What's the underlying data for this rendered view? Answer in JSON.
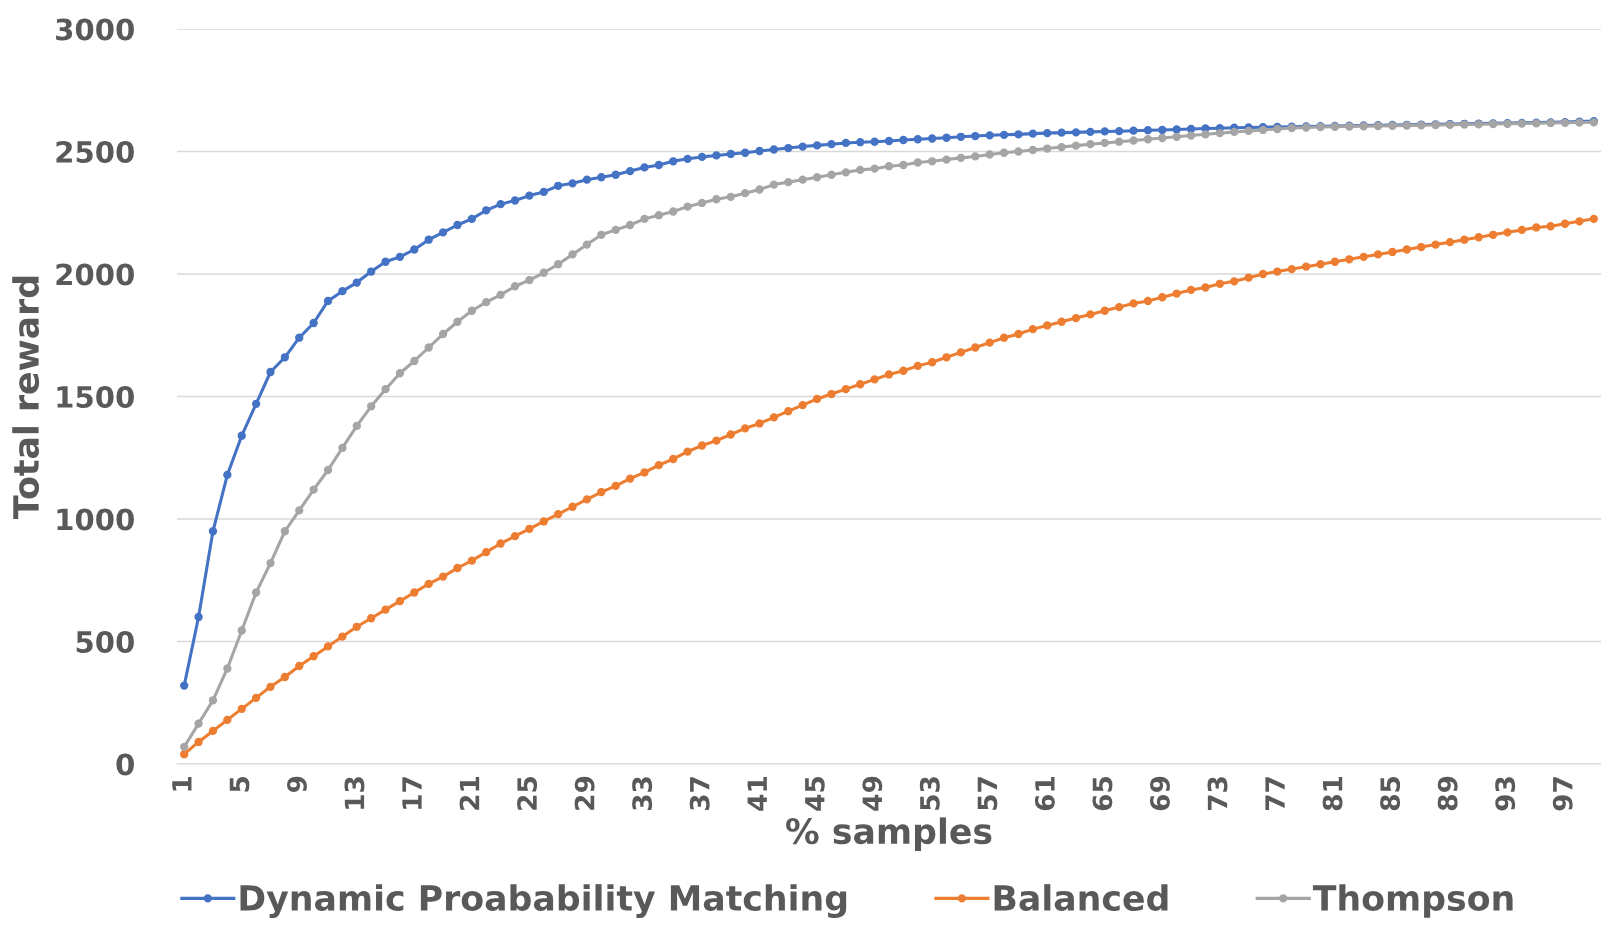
{
  "chart_data": {
    "type": "line",
    "xlabel": "% samples",
    "ylabel": "Total reward",
    "categories": [
      "1",
      null,
      null,
      null,
      "5",
      null,
      null,
      null,
      "9",
      null,
      null,
      null,
      "13",
      null,
      null,
      null,
      "17",
      null,
      null,
      null,
      "21",
      null,
      null,
      null,
      "25",
      null,
      null,
      null,
      "29",
      null,
      null,
      null,
      "33",
      null,
      null,
      null,
      "37",
      null,
      null,
      null,
      "41",
      null,
      null,
      null,
      "45",
      null,
      null,
      null,
      "49",
      null,
      null,
      null,
      "53",
      null,
      null,
      null,
      "57",
      null,
      null,
      null,
      "61",
      null,
      null,
      null,
      "65",
      null,
      null,
      null,
      "69",
      null,
      null,
      null,
      "73",
      null,
      null,
      null,
      "77",
      null,
      null,
      null,
      "81",
      null,
      null,
      null,
      "85",
      null,
      null,
      null,
      "89",
      null,
      null,
      null,
      "93",
      null,
      null,
      null,
      "97",
      null,
      null
    ],
    "series": [
      {
        "name": "Dynamic Proabability Matching",
        "color": "#4472c4",
        "values": [
          320,
          600,
          950,
          1180,
          1340,
          1470,
          1600,
          1660,
          1740,
          1800,
          1890,
          1930,
          1965,
          2010,
          2050,
          2070,
          2100,
          2140,
          2170,
          2200,
          2225,
          2260,
          2285,
          2300,
          2320,
          2335,
          2360,
          2370,
          2385,
          2395,
          2405,
          2420,
          2435,
          2445,
          2460,
          2470,
          2478,
          2484,
          2490,
          2495,
          2502,
          2508,
          2514,
          2520,
          2525,
          2530,
          2535,
          2538,
          2540,
          2543,
          2547,
          2550,
          2553,
          2556,
          2560,
          2563,
          2566,
          2568,
          2570,
          2573,
          2575,
          2577,
          2578,
          2580,
          2582,
          2583,
          2585,
          2587,
          2588,
          2590,
          2592,
          2594,
          2595,
          2597,
          2598,
          2599,
          2600,
          2601,
          2602,
          2603,
          2604,
          2605,
          2606,
          2607,
          2608,
          2609,
          2610,
          2611,
          2612,
          2613,
          2614,
          2615,
          2616,
          2617,
          2618,
          2619,
          2620,
          2622,
          2624
        ]
      },
      {
        "name": "Balanced",
        "color": "#ed7d31",
        "values": [
          40,
          90,
          135,
          180,
          225,
          270,
          315,
          355,
          400,
          440,
          480,
          520,
          560,
          595,
          630,
          665,
          700,
          735,
          765,
          800,
          830,
          865,
          900,
          930,
          960,
          990,
          1020,
          1050,
          1080,
          1110,
          1135,
          1165,
          1190,
          1220,
          1245,
          1275,
          1300,
          1320,
          1345,
          1370,
          1390,
          1415,
          1440,
          1465,
          1490,
          1510,
          1530,
          1550,
          1570,
          1590,
          1605,
          1625,
          1640,
          1660,
          1680,
          1700,
          1720,
          1740,
          1755,
          1775,
          1790,
          1805,
          1820,
          1835,
          1850,
          1865,
          1880,
          1890,
          1905,
          1920,
          1935,
          1945,
          1960,
          1970,
          1985,
          2000,
          2010,
          2020,
          2030,
          2040,
          2050,
          2060,
          2070,
          2080,
          2090,
          2100,
          2110,
          2120,
          2130,
          2140,
          2150,
          2160,
          2170,
          2180,
          2190,
          2195,
          2205,
          2215,
          2225
        ]
      },
      {
        "name": "Thompson",
        "color": "#a5a5a5",
        "values": [
          70,
          165,
          260,
          390,
          545,
          700,
          820,
          950,
          1035,
          1120,
          1200,
          1290,
          1380,
          1460,
          1530,
          1595,
          1645,
          1700,
          1755,
          1805,
          1850,
          1885,
          1915,
          1950,
          1975,
          2005,
          2040,
          2080,
          2120,
          2160,
          2180,
          2200,
          2225,
          2240,
          2255,
          2275,
          2290,
          2305,
          2315,
          2330,
          2345,
          2365,
          2375,
          2385,
          2395,
          2405,
          2415,
          2425,
          2430,
          2440,
          2445,
          2455,
          2460,
          2467,
          2474,
          2480,
          2488,
          2495,
          2500,
          2506,
          2512,
          2518,
          2524,
          2530,
          2535,
          2540,
          2545,
          2550,
          2555,
          2560,
          2565,
          2570,
          2575,
          2580,
          2584,
          2588,
          2592,
          2596,
          2598,
          2600,
          2601,
          2602,
          2603,
          2604,
          2605,
          2606,
          2607,
          2608,
          2609,
          2610,
          2611,
          2612,
          2613,
          2614,
          2615,
          2616,
          2617,
          2618,
          2619
        ]
      }
    ],
    "ylim": [
      0,
      3000
    ],
    "yticks": [
      0,
      500,
      1000,
      1500,
      2000,
      2500,
      3000
    ],
    "grid": "y",
    "legend": "bottom",
    "marker": "circle",
    "line_style": "solid"
  }
}
